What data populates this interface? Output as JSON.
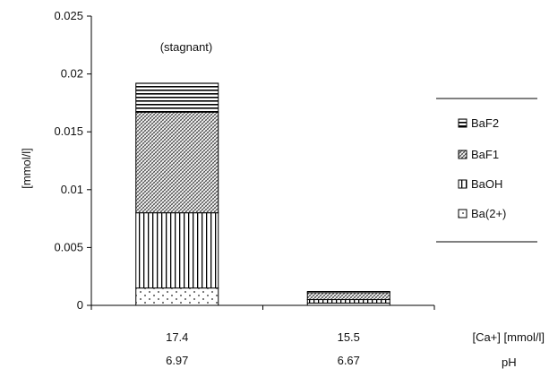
{
  "chart_data": {
    "type": "bar",
    "stacked": true,
    "ylabel": "[mmol/l]",
    "ylim": [
      0,
      0.025
    ],
    "yticks": [
      "0",
      "0.005",
      "0.01",
      "0.015",
      "0.02",
      "0.025"
    ],
    "ytick_values": [
      0,
      0.005,
      0.01,
      0.015,
      0.02,
      0.025
    ],
    "categories": [
      {
        "line1": "17.4",
        "line2": "6.97"
      },
      {
        "line1": "15.5",
        "line2": "6.67"
      }
    ],
    "x_row_labels": [
      "[Ca+] [mmol/l]",
      "pH"
    ],
    "annotation": "(stagnant)",
    "series": [
      {
        "name": "Ba(2+)",
        "legend_label": "Ba(2+)",
        "pattern": "dots",
        "values": [
          0.0015,
          0.0002
        ]
      },
      {
        "name": "BaOH",
        "legend_label": "BaOH",
        "pattern": "vlines",
        "values": [
          0.0065,
          0.0003
        ]
      },
      {
        "name": "BaF1",
        "legend_label": "BaF1",
        "pattern": "crosshatch",
        "values": [
          0.0087,
          0.0006
        ]
      },
      {
        "name": "BaF2",
        "legend_label": "BaF2",
        "pattern": "hlines",
        "values": [
          0.0025,
          0.0001
        ]
      }
    ],
    "legend_position": "right",
    "grid": false
  }
}
